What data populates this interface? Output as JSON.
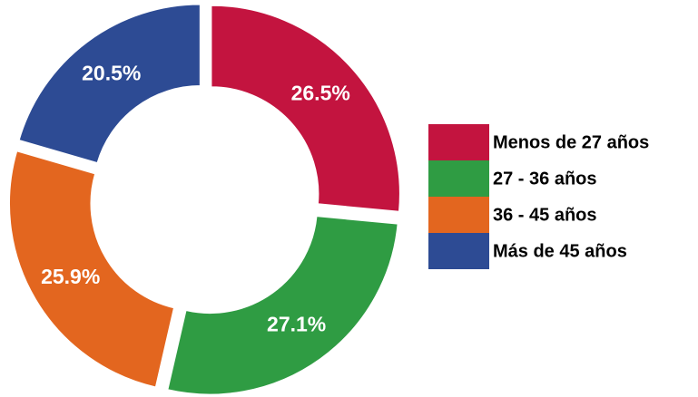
{
  "chart_data": {
    "type": "donut",
    "categories": [
      "Menos de 27 años",
      "27 - 36 años",
      "36 - 45 años",
      "Más de 45 años"
    ],
    "values": [
      26.5,
      27.1,
      25.9,
      20.5
    ],
    "value_labels": [
      "26.5%",
      "27.1%",
      "25.9%",
      "20.5%"
    ],
    "colors": [
      "#c3143f",
      "#2f9c43",
      "#e3661f",
      "#2d4b94"
    ],
    "legend": "right"
  }
}
